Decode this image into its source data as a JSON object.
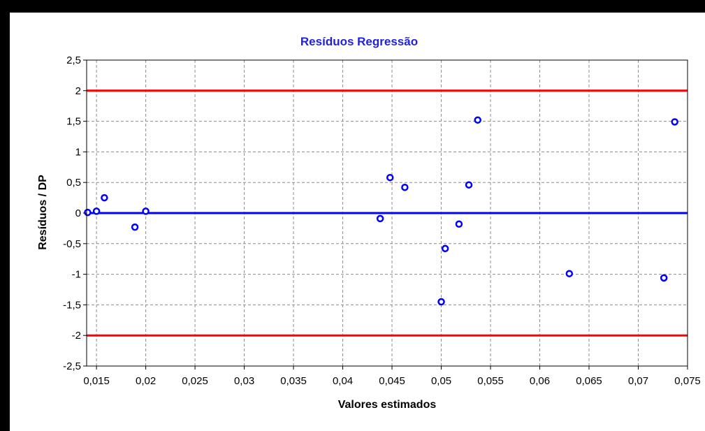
{
  "chart_data": {
    "type": "scatter",
    "title": "Resíduos Regressão",
    "xlabel": "Valores estimados",
    "ylabel": "Resíduos / DP",
    "xlim": [
      0.014,
      0.075
    ],
    "ylim": [
      -2.5,
      2.5
    ],
    "xticks": [
      0.015,
      0.02,
      0.025,
      0.03,
      0.035,
      0.04,
      0.045,
      0.05,
      0.055,
      0.06,
      0.065,
      0.07,
      0.075
    ],
    "xtick_labels": [
      "0,015",
      "0,02",
      "0,025",
      "0,03",
      "0,035",
      "0,04",
      "0,045",
      "0,05",
      "0,055",
      "0,06",
      "0,065",
      "0,07",
      "0,075"
    ],
    "yticks": [
      2.5,
      2,
      1.5,
      1,
      0.5,
      0,
      -0.5,
      -1,
      -1.5,
      -2,
      -2.5
    ],
    "ytick_labels": [
      "2,5",
      "2",
      "1,5",
      "1",
      "0,5",
      "0",
      "-0,5",
      "-1",
      "-1,5",
      "-2",
      "-2,5"
    ],
    "grid": true,
    "reference_lines": [
      {
        "y": 2,
        "color": "#ff0000"
      },
      {
        "y": 0,
        "color": "#0000ff"
      },
      {
        "y": -2,
        "color": "#ff0000"
      }
    ],
    "points": [
      {
        "x": 0.0141,
        "y": 0.01
      },
      {
        "x": 0.015,
        "y": 0.03
      },
      {
        "x": 0.0158,
        "y": 0.25
      },
      {
        "x": 0.0189,
        "y": -0.23
      },
      {
        "x": 0.02,
        "y": 0.03
      },
      {
        "x": 0.0438,
        "y": -0.09
      },
      {
        "x": 0.0448,
        "y": 0.58
      },
      {
        "x": 0.0463,
        "y": 0.42
      },
      {
        "x": 0.05,
        "y": -1.45
      },
      {
        "x": 0.0504,
        "y": -0.58
      },
      {
        "x": 0.0518,
        "y": -0.18
      },
      {
        "x": 0.0528,
        "y": 0.46
      },
      {
        "x": 0.0537,
        "y": 1.52
      },
      {
        "x": 0.063,
        "y": -0.99
      },
      {
        "x": 0.0726,
        "y": -1.06
      },
      {
        "x": 0.0737,
        "y": 1.49
      }
    ],
    "point_color": "#0000ff",
    "title_color": "#1f1fe6"
  }
}
